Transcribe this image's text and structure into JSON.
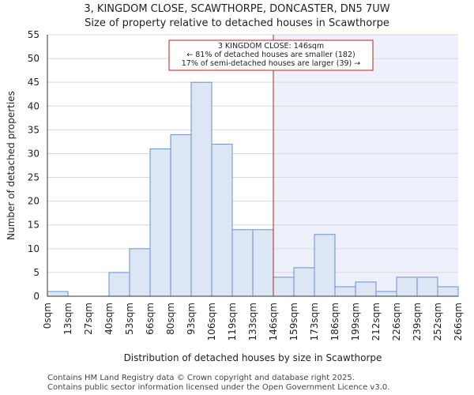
{
  "header": {
    "title_line1": "3, KINGDOM CLOSE, SCAWTHORPE, DONCASTER, DN5 7UW",
    "title_line2": "Size of property relative to detached houses in Scawthorpe"
  },
  "footer": {
    "line1": "Contains HM Land Registry data © Crown copyright and database right 2025.",
    "line2": "Contains public sector information licensed under the Open Government Licence v3.0."
  },
  "colors": {
    "bar_fill": "#dde6f5",
    "bar_stroke": "#6d8fca",
    "highlight_bg": "#eef1fb",
    "marker": "#b22222",
    "grid": "#d9d9d9"
  },
  "chart_data": {
    "type": "bar",
    "title": "3, KINGDOM CLOSE, SCAWTHORPE, DONCASTER, DN5 7UW",
    "subtitle": "Size of property relative to detached houses in Scawthorpe",
    "xlabel": "Distribution of detached houses by size in Scawthorpe",
    "ylabel": "Number of detached properties",
    "bin_edges": [
      "0sqm",
      "13sqm",
      "27sqm",
      "40sqm",
      "53sqm",
      "66sqm",
      "80sqm",
      "93sqm",
      "106sqm",
      "119sqm",
      "133sqm",
      "146sqm",
      "159sqm",
      "173sqm",
      "186sqm",
      "199sqm",
      "212sqm",
      "226sqm",
      "239sqm",
      "252sqm",
      "266sqm"
    ],
    "values": [
      1,
      0,
      0,
      5,
      10,
      31,
      34,
      45,
      32,
      14,
      14,
      4,
      6,
      13,
      2,
      3,
      1,
      4,
      4,
      2
    ],
    "ylim": [
      0,
      55
    ],
    "yticks": [
      0,
      5,
      10,
      15,
      20,
      25,
      30,
      35,
      40,
      45,
      50,
      55
    ],
    "grid": true,
    "marker": {
      "at_edge_label": "146sqm",
      "annotation": [
        "3 KINGDOM CLOSE: 146sqm",
        "← 81% of detached houses are smaller (182)",
        "17% of semi-detached houses are larger (39) →"
      ]
    }
  }
}
